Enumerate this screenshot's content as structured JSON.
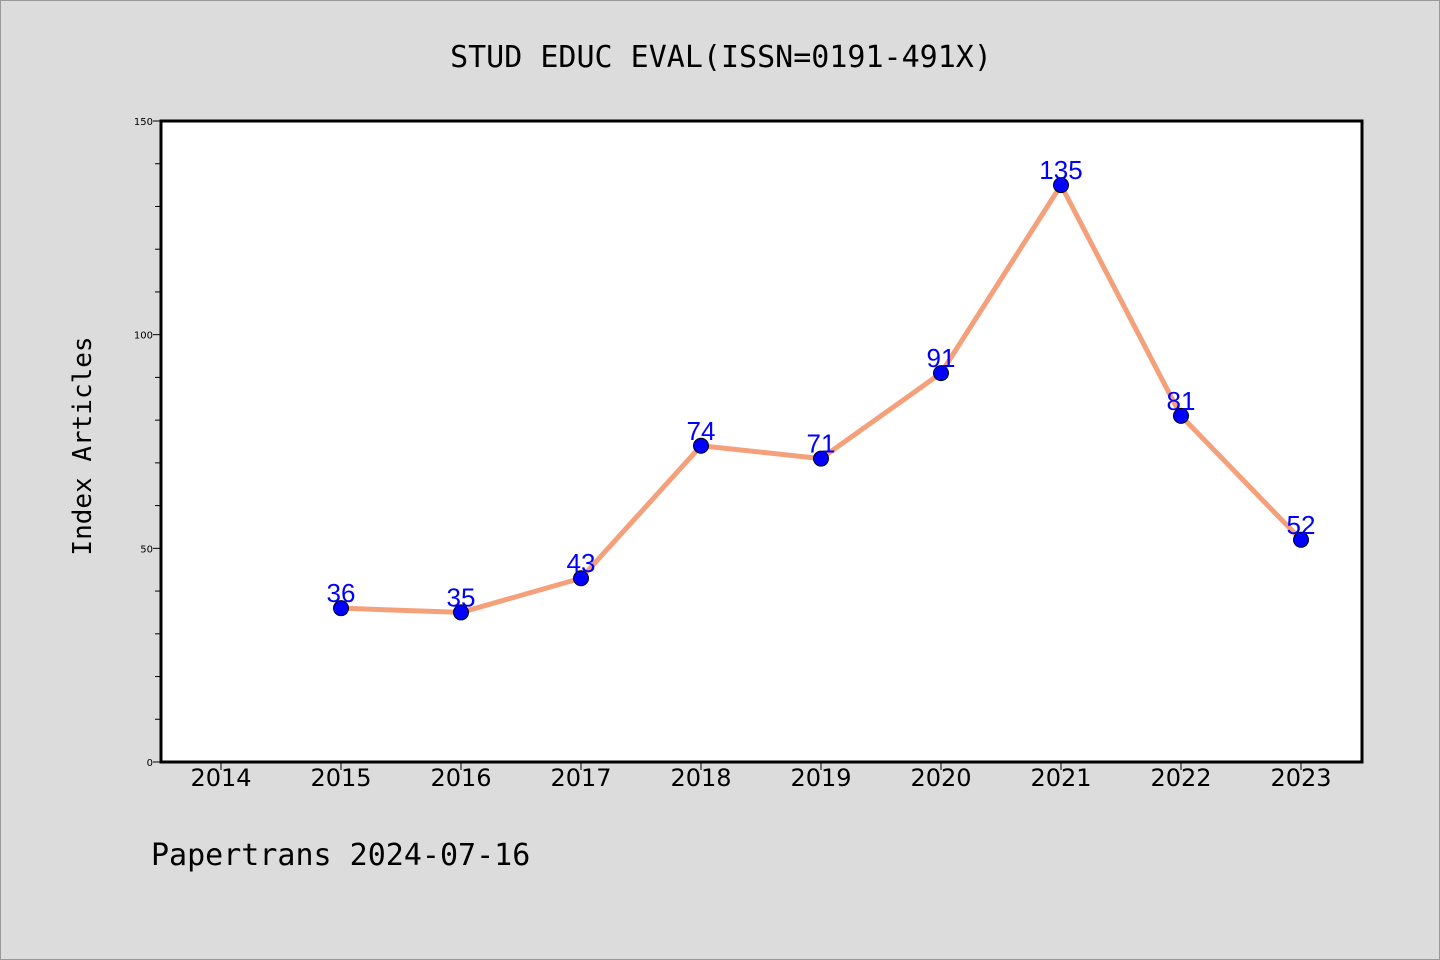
{
  "chart_data": {
    "type": "line",
    "title": "STUD EDUC EVAL(ISSN=0191-491X)",
    "xlabel": "",
    "ylabel": "Index Articles",
    "categories": [
      "2014",
      "2015",
      "2016",
      "2017",
      "2018",
      "2019",
      "2020",
      "2021",
      "2022",
      "2023"
    ],
    "series": [
      {
        "x": [
          "2015",
          "2016",
          "2017",
          "2018",
          "2019",
          "2020",
          "2021",
          "2022",
          "2023"
        ],
        "values": [
          36,
          35,
          43,
          74,
          71,
          91,
          135,
          81,
          52
        ]
      }
    ],
    "yticks": [
      0,
      50,
      100,
      150
    ],
    "ylim": [
      0,
      150
    ],
    "grid": false,
    "line_color": "#f4a07a",
    "marker_color": "#0000ff",
    "label_color": "#0000ff"
  },
  "footer": "Papertrans 2024-07-16"
}
